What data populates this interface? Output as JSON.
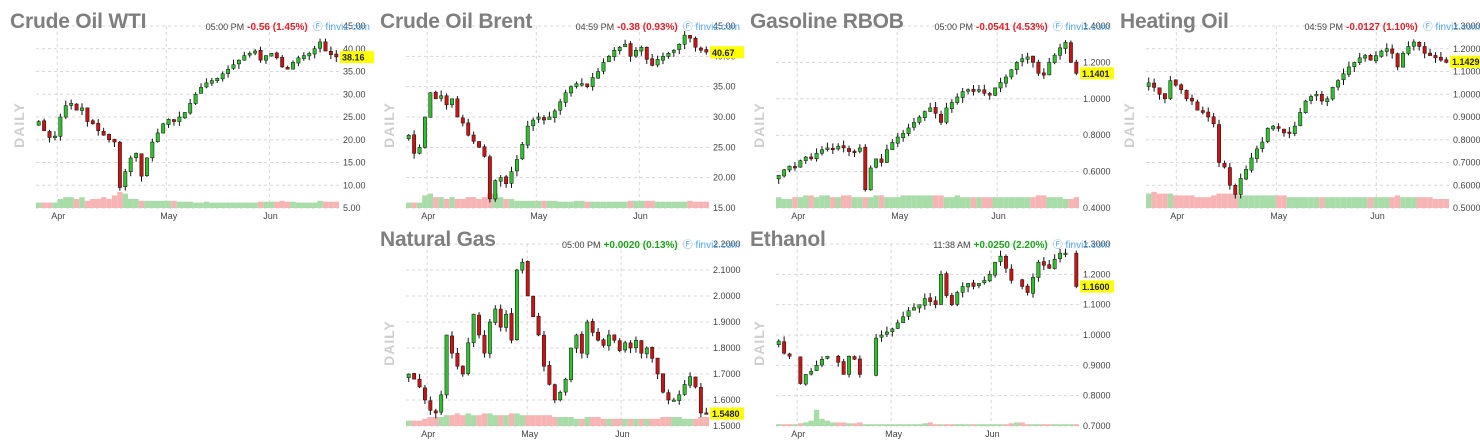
{
  "source_label": "finviz.com",
  "colors": {
    "up": "#2fbf2f",
    "down": "#c81414",
    "vol_up": "#a8dca8",
    "vol_down": "#f7b4b4",
    "highlight": "#ffff00",
    "neg": "#e0202a",
    "pos": "#1fa31f",
    "grid": "#d8d8d8"
  },
  "chart_data": [
    {
      "id": "wti",
      "type": "candlestick",
      "title": "Crude Oil WTI",
      "time": "05:00 PM",
      "change": "-0.56 (1.45%)",
      "direction": "down",
      "period_label": "DAILY",
      "last": "38.16",
      "last_value": 38.16,
      "x_labels": [
        [
          "Apr",
          0.07
        ],
        [
          "May",
          0.43
        ],
        [
          "Jun",
          0.77
        ]
      ],
      "y_ticks": [
        [
          "45.00",
          45
        ],
        [
          "40.00",
          40
        ],
        [
          "35.00",
          35
        ],
        [
          "30.00",
          30
        ],
        [
          "25.00",
          25
        ],
        [
          "20.00",
          20
        ],
        [
          "15.00",
          15
        ],
        [
          "10.00",
          10
        ],
        [
          "5.00",
          5
        ]
      ],
      "ylim": [
        5,
        45
      ],
      "closes": [
        24,
        22,
        20.5,
        20.8,
        25,
        27.5,
        28,
        26.5,
        27,
        24,
        23.5,
        22,
        21,
        20,
        19.5,
        9.5,
        13,
        16,
        17,
        12,
        16,
        19.5,
        21.5,
        23.5,
        24.5,
        24,
        25,
        26,
        28,
        30,
        31.5,
        32.5,
        33,
        33.5,
        34.5,
        35.5,
        36.5,
        37.5,
        38.5,
        39,
        39.5,
        37.5,
        38.5,
        39,
        38,
        36,
        35.5,
        37,
        38,
        38.5,
        39,
        40,
        41.5,
        39.5,
        38.7,
        38.2
      ],
      "volume": [
        0.3,
        0.3,
        0.3,
        0.3,
        0.5,
        0.6,
        0.6,
        0.5,
        0.6,
        0.4,
        0.5,
        0.5,
        0.6,
        0.5,
        0.7,
        0.9,
        0.8,
        0.5,
        0.5,
        0.4,
        0.4,
        0.4,
        0.4,
        0.4,
        0.4,
        0.4,
        0.35,
        0.35,
        0.35,
        0.3,
        0.3,
        0.35,
        0.3,
        0.3,
        0.3,
        0.3,
        0.3,
        0.3,
        0.3,
        0.3,
        0.3,
        0.35,
        0.35,
        0.35,
        0.35,
        0.4,
        0.35,
        0.35,
        0.3,
        0.3,
        0.3,
        0.3,
        0.4,
        0.35,
        0.35,
        0.35
      ]
    },
    {
      "id": "brent",
      "type": "candlestick",
      "title": "Crude Oil Brent",
      "time": "04:59 PM",
      "change": "-0.38 (0.93%)",
      "direction": "down",
      "period_label": "DAILY",
      "last": "40.67",
      "last_value": 40.67,
      "x_labels": [
        [
          "Apr",
          0.07
        ],
        [
          "May",
          0.43
        ],
        [
          "Jun",
          0.77
        ]
      ],
      "y_ticks": [
        [
          "45.00",
          45
        ],
        [
          "40.00",
          40
        ],
        [
          "35.00",
          35
        ],
        [
          "30.00",
          30
        ],
        [
          "25.00",
          25
        ],
        [
          "20.00",
          20
        ],
        [
          "15.00",
          15
        ]
      ],
      "ylim": [
        15,
        45
      ],
      "closes": [
        27,
        24,
        25,
        30,
        34,
        33,
        33.5,
        32,
        33,
        30,
        29,
        27,
        26,
        25,
        23.5,
        16.5,
        19.5,
        20,
        19,
        21,
        23,
        25.5,
        28.5,
        29.5,
        30,
        29.5,
        30,
        31,
        32.5,
        34,
        35,
        35.5,
        35.5,
        35,
        36.5,
        37.5,
        39,
        40,
        41,
        41.5,
        42,
        40,
        41,
        41.5,
        39.5,
        38.5,
        39.5,
        40,
        40.5,
        41,
        42,
        43.5,
        43,
        41.5,
        41,
        40.7
      ],
      "volume": [
        0.3,
        0.3,
        0.3,
        0.7,
        0.8,
        0.6,
        0.6,
        0.5,
        0.6,
        0.5,
        0.5,
        0.6,
        0.6,
        0.5,
        0.6,
        0.8,
        0.8,
        0.6,
        0.5,
        0.5,
        0.4,
        0.4,
        0.4,
        0.4,
        0.4,
        0.4,
        0.4,
        0.4,
        0.35,
        0.35,
        0.35,
        0.4,
        0.4,
        0.35,
        0.35,
        0.35,
        0.35,
        0.35,
        0.35,
        0.35,
        0.35,
        0.4,
        0.4,
        0.4,
        0.4,
        0.4,
        0.35,
        0.35,
        0.35,
        0.35,
        0.35,
        0.35,
        0.4,
        0.35,
        0.35,
        0.35
      ]
    },
    {
      "id": "rbob",
      "type": "candlestick",
      "title": "Gasoline RBOB",
      "time": "05:00 PM",
      "change": "-0.0541 (4.53%)",
      "direction": "down",
      "period_label": "DAILY",
      "last": "1.1401",
      "last_value": 1.1401,
      "x_labels": [
        [
          "Apr",
          0.07
        ],
        [
          "May",
          0.4
        ],
        [
          "Jun",
          0.73
        ]
      ],
      "y_ticks": [
        [
          "1.4000",
          1.4
        ],
        [
          "1.2000",
          1.2
        ],
        [
          "1.0000",
          1.0
        ],
        [
          "0.8000",
          0.8
        ],
        [
          "0.6000",
          0.6
        ],
        [
          "0.4000",
          0.4
        ]
      ],
      "ylim": [
        0.4,
        1.4
      ],
      "closes": [
        0.58,
        0.61,
        0.63,
        0.62,
        0.66,
        0.68,
        0.67,
        0.7,
        0.72,
        0.73,
        0.72,
        0.74,
        0.73,
        0.71,
        0.71,
        0.73,
        0.5,
        0.62,
        0.67,
        0.65,
        0.72,
        0.76,
        0.79,
        0.81,
        0.84,
        0.87,
        0.9,
        0.93,
        0.95,
        0.92,
        0.87,
        0.95,
        0.98,
        1.01,
        1.04,
        1.05,
        1.04,
        1.05,
        1.03,
        1.02,
        1.06,
        1.09,
        1.12,
        1.16,
        1.2,
        1.22,
        1.23,
        1.2,
        1.14,
        1.13,
        1.2,
        1.24,
        1.28,
        1.31,
        1.2,
        1.14
      ],
      "volume": [
        0.6,
        0.5,
        0.5,
        0.6,
        0.6,
        0.7,
        0.7,
        0.6,
        0.7,
        0.7,
        0.6,
        0.6,
        0.7,
        0.7,
        0.6,
        0.6,
        0.6,
        0.6,
        0.7,
        0.7,
        0.6,
        0.6,
        0.6,
        0.7,
        0.7,
        0.7,
        0.7,
        0.7,
        0.7,
        0.7,
        0.7,
        0.6,
        0.6,
        0.7,
        0.6,
        0.6,
        0.6,
        0.6,
        0.6,
        0.6,
        0.6,
        0.6,
        0.6,
        0.6,
        0.6,
        0.6,
        0.6,
        0.6,
        0.7,
        0.7,
        0.6,
        0.6,
        0.6,
        0.5,
        0.5,
        0.6
      ]
    },
    {
      "id": "heating",
      "type": "candlestick",
      "title": "Heating Oil",
      "time": "04:59 PM",
      "change": "-0.0127 (1.10%)",
      "direction": "down",
      "period_label": "DAILY",
      "last": "1.1429",
      "last_value": 1.1429,
      "x_labels": [
        [
          "Apr",
          0.1
        ],
        [
          "May",
          0.43
        ],
        [
          "Jun",
          0.76
        ]
      ],
      "y_ticks": [
        [
          "1.3000",
          1.3
        ],
        [
          "1.2000",
          1.2
        ],
        [
          "1.1000",
          1.1
        ],
        [
          "1.0000",
          1.0
        ],
        [
          "0.9000",
          0.9
        ],
        [
          "0.8000",
          0.8
        ],
        [
          "0.7000",
          0.7
        ],
        [
          "0.6000",
          0.6
        ],
        [
          "0.5000",
          0.5
        ]
      ],
      "ylim": [
        0.5,
        1.3
      ],
      "closes": [
        1.05,
        1.03,
        1.0,
        0.98,
        1.06,
        1.04,
        1.02,
        0.98,
        0.97,
        0.93,
        0.92,
        0.9,
        0.87,
        0.7,
        0.68,
        0.6,
        0.56,
        0.63,
        0.67,
        0.72,
        0.76,
        0.79,
        0.85,
        0.86,
        0.85,
        0.83,
        0.83,
        0.86,
        0.92,
        0.97,
        0.99,
        1.0,
        0.97,
        0.98,
        1.03,
        1.06,
        1.09,
        1.12,
        1.14,
        1.16,
        1.17,
        1.15,
        1.17,
        1.19,
        1.2,
        1.18,
        1.12,
        1.18,
        1.21,
        1.23,
        1.21,
        1.18,
        1.17,
        1.16,
        1.15,
        1.14
      ],
      "volume": [
        0.8,
        0.9,
        0.8,
        0.8,
        0.8,
        0.7,
        0.7,
        0.7,
        0.7,
        0.6,
        0.6,
        0.6,
        0.7,
        0.8,
        0.8,
        0.8,
        0.8,
        0.7,
        0.7,
        0.7,
        0.7,
        0.7,
        0.7,
        0.7,
        0.7,
        0.7,
        0.6,
        0.6,
        0.6,
        0.6,
        0.6,
        0.6,
        0.6,
        0.6,
        0.6,
        0.6,
        0.6,
        0.6,
        0.6,
        0.6,
        0.6,
        0.6,
        0.6,
        0.6,
        0.6,
        0.6,
        0.7,
        0.6,
        0.6,
        0.6,
        0.6,
        0.6,
        0.6,
        0.5,
        0.5,
        0.5
      ]
    },
    {
      "id": "natgas",
      "type": "candlestick",
      "title": "Natural Gas",
      "time": "05:00 PM",
      "change": "+0.0020 (0.13%)",
      "direction": "up",
      "period_label": "DAILY",
      "last": "1.5480",
      "last_value": 1.548,
      "x_labels": [
        [
          "Apr",
          0.07
        ],
        [
          "May",
          0.4
        ],
        [
          "Jun",
          0.71
        ]
      ],
      "y_ticks": [
        [
          "2.2000",
          2.2
        ],
        [
          "2.1000",
          2.1
        ],
        [
          "2.0000",
          2.0
        ],
        [
          "1.9000",
          1.9
        ],
        [
          "1.8000",
          1.8
        ],
        [
          "1.7000",
          1.7
        ],
        [
          "1.6000",
          1.6
        ],
        [
          "1.5000",
          1.5
        ]
      ],
      "ylim": [
        1.5,
        2.2
      ],
      "closes": [
        1.7,
        1.68,
        1.65,
        1.6,
        1.56,
        1.55,
        1.62,
        1.85,
        1.78,
        1.73,
        1.7,
        1.82,
        1.93,
        1.85,
        1.78,
        1.9,
        1.95,
        1.88,
        1.93,
        1.83,
        2.1,
        2.13,
        2.0,
        1.92,
        1.85,
        1.73,
        1.66,
        1.6,
        1.63,
        1.68,
        1.8,
        1.85,
        1.78,
        1.9,
        1.86,
        1.83,
        1.81,
        1.85,
        1.83,
        1.79,
        1.82,
        1.8,
        1.83,
        1.78,
        1.8,
        1.76,
        1.7,
        1.63,
        1.6,
        1.6,
        1.62,
        1.66,
        1.69,
        1.65,
        1.55,
        1.548
      ],
      "volume": [
        0.3,
        0.3,
        0.3,
        0.4,
        0.5,
        0.5,
        0.5,
        0.6,
        0.6,
        0.7,
        0.6,
        0.7,
        0.6,
        0.6,
        0.7,
        0.7,
        0.6,
        0.6,
        0.6,
        0.7,
        0.7,
        0.6,
        0.6,
        0.6,
        0.6,
        0.6,
        0.6,
        0.5,
        0.5,
        0.5,
        0.5,
        0.4,
        0.4,
        0.5,
        0.5,
        0.5,
        0.4,
        0.4,
        0.4,
        0.4,
        0.4,
        0.4,
        0.4,
        0.4,
        0.4,
        0.4,
        0.4,
        0.5,
        0.5,
        0.5,
        0.5,
        0.4,
        0.4,
        0.4,
        0.5,
        0.5
      ]
    },
    {
      "id": "ethanol",
      "type": "candlestick",
      "title": "Ethanol",
      "time": "11:38 AM",
      "change": "+0.0250 (2.20%)",
      "direction": "up",
      "period_label": "DAILY",
      "last": "1.1600",
      "last_value": 1.16,
      "x_labels": [
        [
          "Apr",
          0.07
        ],
        [
          "May",
          0.38
        ],
        [
          "Jun",
          0.71
        ]
      ],
      "y_ticks": [
        [
          "1.3000",
          1.3
        ],
        [
          "1.2000",
          1.2
        ],
        [
          "1.1000",
          1.1
        ],
        [
          "1.0000",
          1.0
        ],
        [
          "0.9000",
          0.9
        ],
        [
          "0.8000",
          0.8
        ],
        [
          "0.7000",
          0.7
        ]
      ],
      "ylim": [
        0.7,
        1.3
      ],
      "closes": [
        0.98,
        0.94,
        0.93,
        null,
        0.84,
        0.87,
        0.88,
        0.9,
        0.92,
        0.93,
        null,
        0.91,
        0.87,
        0.93,
        0.92,
        0.87,
        null,
        null,
        0.99,
        1.0,
        1.01,
        1.02,
        1.04,
        1.06,
        1.08,
        1.09,
        1.1,
        1.12,
        1.11,
        1.1,
        1.2,
        1.13,
        1.1,
        1.14,
        1.16,
        1.17,
        1.16,
        1.17,
        1.18,
        1.2,
        1.24,
        1.26,
        1.22,
        1.18,
        null,
        1.16,
        1.14,
        1.19,
        1.24,
        1.23,
        1.22,
        1.25,
        1.27,
        1.27,
        null,
        1.16
      ],
      "volume": [
        0.1,
        0.1,
        0.1,
        0.1,
        0.15,
        0.2,
        0.3,
        0.9,
        0.4,
        0.3,
        0.2,
        0.2,
        0.2,
        0.15,
        0.15,
        0.2,
        0.1,
        0.1,
        0.1,
        0.1,
        0.1,
        0.1,
        0.1,
        0.1,
        0.1,
        0.1,
        0.1,
        0.15,
        0.2,
        0.1,
        0.1,
        0.1,
        0.1,
        0.1,
        0.1,
        0.1,
        0.1,
        0.1,
        0.1,
        0.1,
        0.1,
        0.1,
        0.1,
        0.15,
        0.2,
        0.2,
        0.1,
        0.1,
        0.1,
        0.1,
        0.1,
        0.1,
        0.1,
        0.1,
        0.1,
        0.1
      ]
    }
  ]
}
